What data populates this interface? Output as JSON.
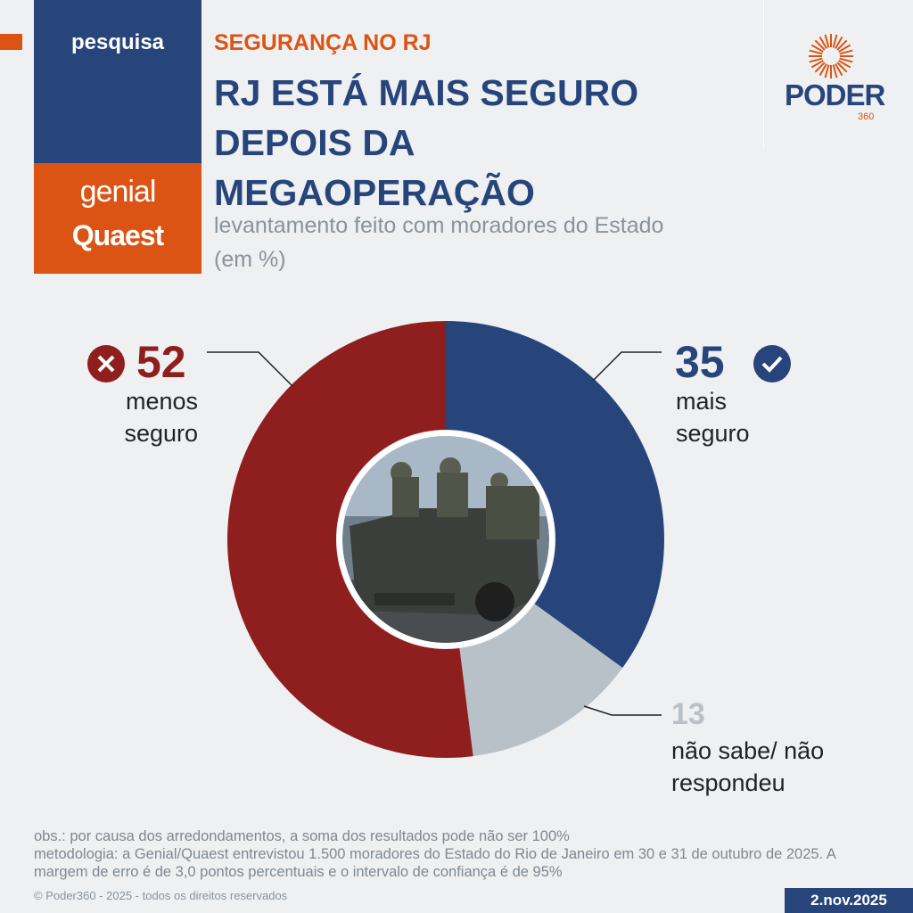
{
  "header": {
    "section": "pesquisa",
    "sponsor_line1": "genial",
    "sponsor_line2": "Quaest",
    "kicker": "SEGURANÇA NO RJ",
    "title": "RJ ESTÁ MAIS SEGURO DEPOIS DA MEGAOPERAÇÃO",
    "subtitle": "levantamento feito com moradores do Estado (em %)",
    "logo": "PODER",
    "logo_sub": "360"
  },
  "colors": {
    "blue": "#27457a",
    "red": "#8f1e1e",
    "gray": "#b9c1c8",
    "orange": "#dc5414"
  },
  "chart_data": {
    "type": "pie",
    "donut": true,
    "start": "top",
    "direction": "clockwise",
    "slices": [
      {
        "label": "mais seguro",
        "value": 35,
        "color": "#27457a",
        "icon": "check-circle-icon"
      },
      {
        "label": "não sabe/ não respondeu",
        "value": 13,
        "color": "#b9c1c8"
      },
      {
        "label": "menos seguro",
        "value": 52,
        "color": "#8f1e1e",
        "icon": "x-circle-icon"
      }
    ],
    "labels": {
      "s0_val": "35",
      "s0_l1": "mais",
      "s0_l2": "seguro",
      "s1_val": "13",
      "s1_l1": "não sabe/ não",
      "s1_l2": "respondeu",
      "s2_val": "52",
      "s2_l1": "menos",
      "s2_l2": "seguro"
    },
    "center_image": "photo of military police truck (POLÍCIA MILITAR)"
  },
  "footer": {
    "obs": "obs.: por causa dos arredondamentos, a soma dos resultados pode não ser 100%",
    "method": "metodologia: a Genial/Quaest entrevistou 1.500 moradores do Estado do Rio de Janeiro em 30 e 31 de outubro de 2025. A margem de erro é de 3,0 pontos percentuais e o intervalo de confiança é de 95%",
    "copyright": "© Poder360 - 2025 - todos os direitos reservados",
    "date": "2.nov.2025"
  }
}
